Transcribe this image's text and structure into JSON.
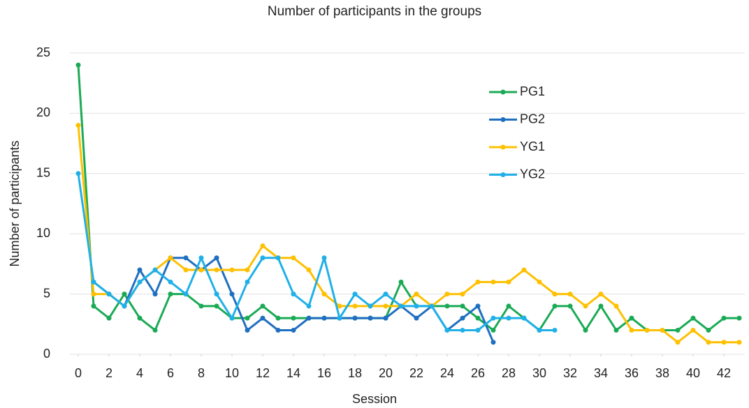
{
  "chart_data": {
    "type": "line",
    "title": "Number of participants in the groups",
    "x_label": "Session",
    "y_label": "Number of participants",
    "x": [
      0,
      1,
      2,
      3,
      4,
      5,
      6,
      7,
      8,
      9,
      10,
      11,
      12,
      13,
      14,
      15,
      16,
      17,
      18,
      19,
      20,
      21,
      22,
      23,
      24,
      25,
      26,
      27,
      28,
      29,
      30,
      31,
      32,
      33,
      34,
      35,
      36,
      37,
      38,
      39,
      40,
      41,
      42,
      43
    ],
    "xlim": [
      0,
      43
    ],
    "xticks": [
      0,
      2,
      4,
      6,
      8,
      10,
      12,
      14,
      16,
      18,
      20,
      22,
      24,
      26,
      28,
      30,
      32,
      34,
      36,
      38,
      40,
      42
    ],
    "ylim": [
      0,
      25
    ],
    "yticks": [
      0,
      5,
      10,
      15,
      20,
      25
    ],
    "grid": true,
    "legend": "upper right",
    "series": [
      {
        "name": "PG1",
        "color": "#1aaa55",
        "values": [
          24,
          4,
          3,
          5,
          3,
          2,
          5,
          5,
          4,
          4,
          3,
          3,
          4,
          3,
          3,
          3,
          3,
          3,
          3,
          3,
          3,
          6,
          4,
          4,
          4,
          4,
          3,
          2,
          4,
          3,
          2,
          4,
          4,
          2,
          4,
          2,
          3,
          2,
          2,
          2,
          3,
          2,
          3,
          3
        ]
      },
      {
        "name": "PG2",
        "color": "#1f6fc1",
        "values": [
          null,
          6,
          5,
          4,
          7,
          5,
          8,
          8,
          7,
          8,
          5,
          2,
          3,
          2,
          2,
          3,
          3,
          3,
          3,
          3,
          3,
          4,
          3,
          4,
          2,
          3,
          4,
          1,
          null,
          null,
          null,
          null,
          null,
          null,
          null,
          null,
          null,
          null,
          null,
          null,
          null,
          null,
          null,
          null
        ]
      },
      {
        "name": "YG1",
        "color": "#ffc000",
        "values": [
          19,
          5,
          5,
          4,
          6,
          7,
          8,
          7,
          7,
          7,
          7,
          7,
          9,
          8,
          8,
          7,
          5,
          4,
          4,
          4,
          4,
          4,
          5,
          4,
          5,
          5,
          6,
          6,
          6,
          7,
          6,
          5,
          5,
          4,
          5,
          4,
          2,
          2,
          2,
          1,
          2,
          1,
          1,
          1
        ]
      },
      {
        "name": "YG2",
        "color": "#1fb0e8",
        "values": [
          15,
          6,
          5,
          4,
          6,
          7,
          6,
          5,
          8,
          5,
          3,
          6,
          8,
          8,
          5,
          4,
          8,
          3,
          5,
          4,
          5,
          4,
          4,
          4,
          2,
          2,
          2,
          3,
          3,
          3,
          2,
          2,
          null,
          null,
          null,
          null,
          null,
          null,
          null,
          null,
          null,
          null,
          null,
          null
        ]
      }
    ]
  }
}
